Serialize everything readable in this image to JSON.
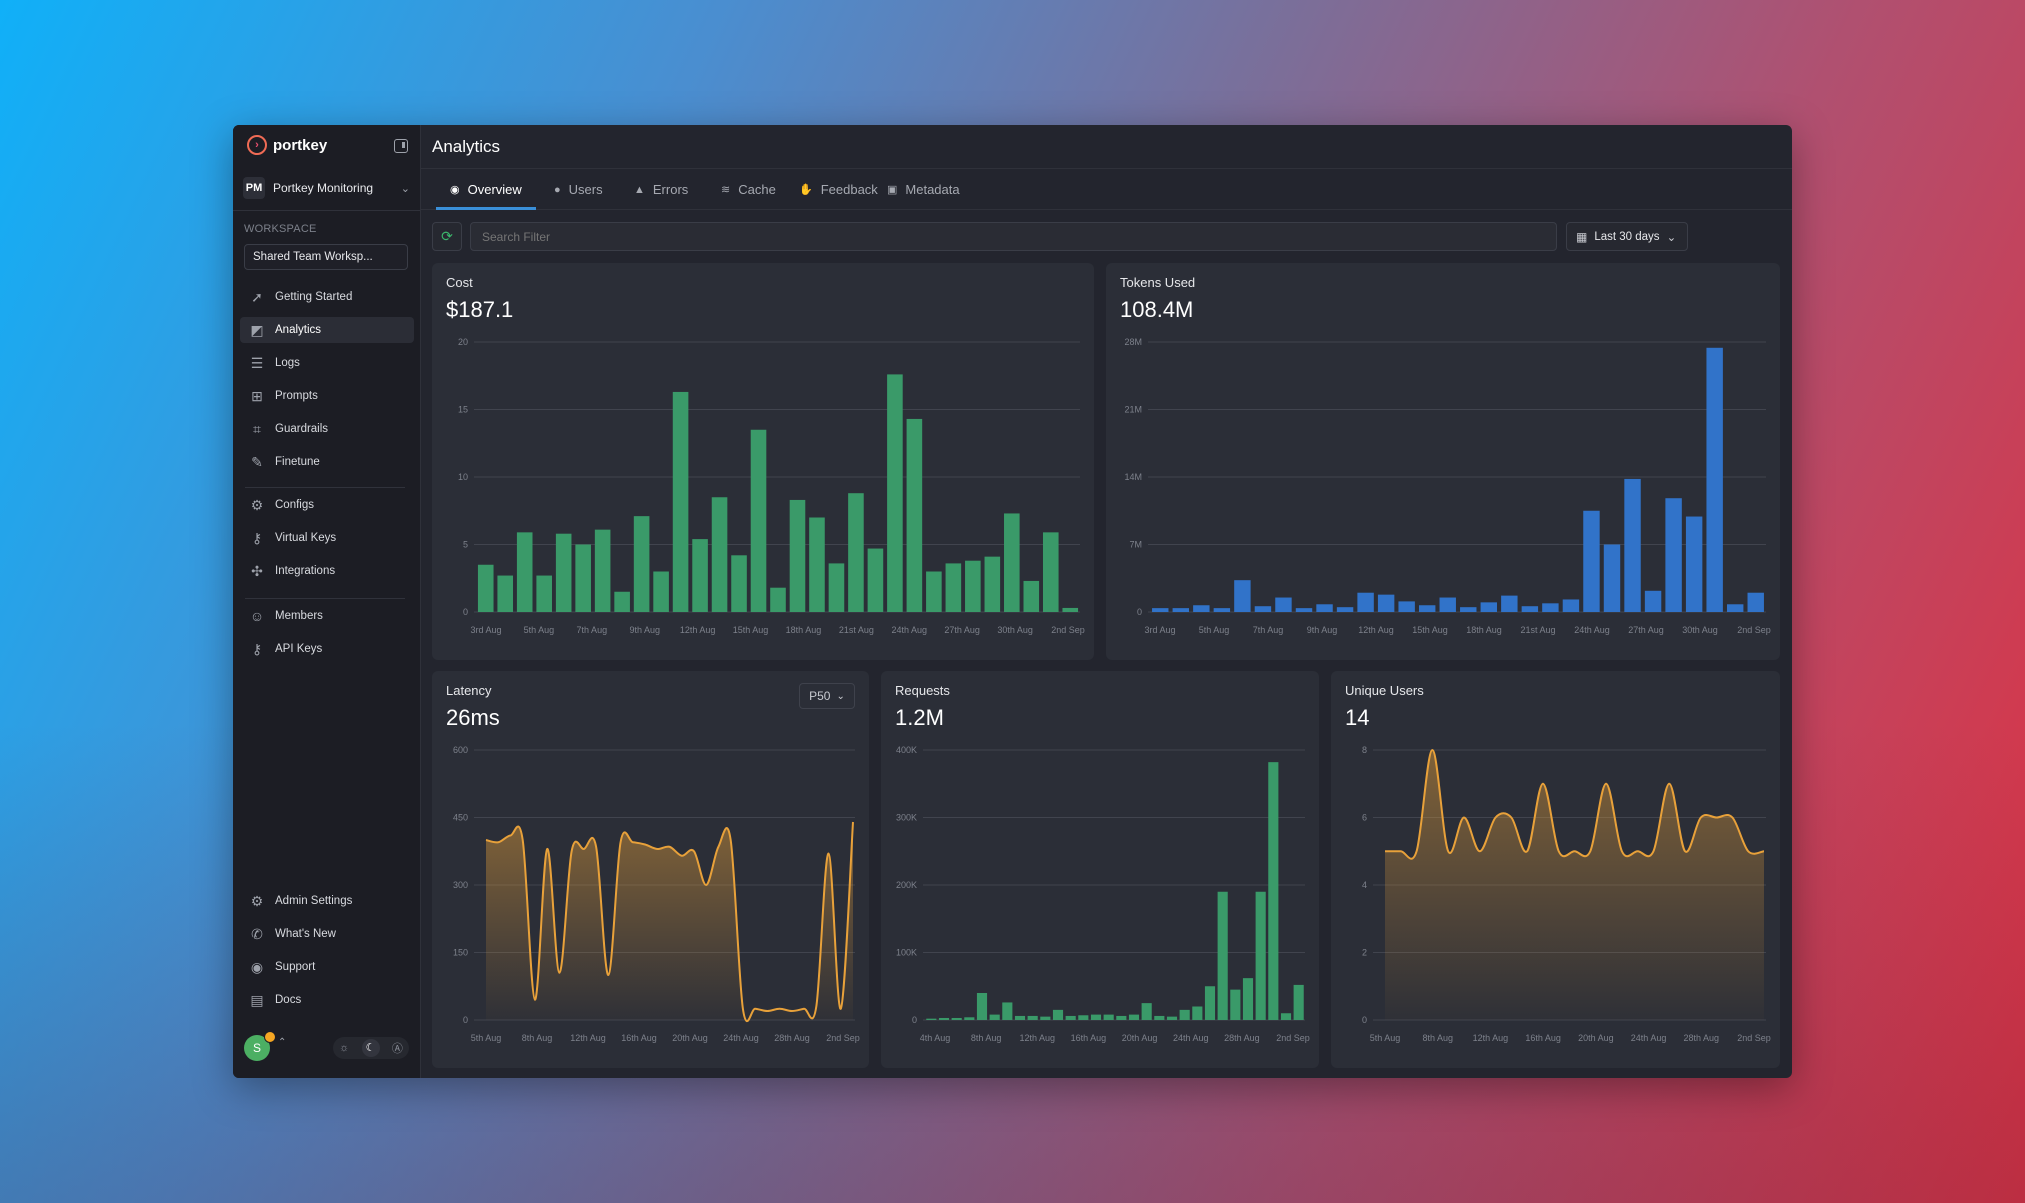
{
  "app": {
    "logo_text": "portkey",
    "org_badge": "PM",
    "org_name": "Portkey Monitoring",
    "workspace_label": "WORKSPACE",
    "workspace_value": "Shared Team Worksp...",
    "page_title": "Analytics",
    "avatar_initial": "S"
  },
  "sidebar": {
    "group1": [
      {
        "label": "Getting Started",
        "icon": "rocket-icon"
      },
      {
        "label": "Analytics",
        "icon": "chart-icon",
        "active": true
      },
      {
        "label": "Logs",
        "icon": "database-icon"
      },
      {
        "label": "Prompts",
        "icon": "grid-plus-icon"
      },
      {
        "label": "Guardrails",
        "icon": "guardrails-icon"
      },
      {
        "label": "Finetune",
        "icon": "wrench-icon"
      }
    ],
    "group2": [
      {
        "label": "Configs",
        "icon": "sliders-icon"
      },
      {
        "label": "Virtual Keys",
        "icon": "key-icon"
      },
      {
        "label": "Integrations",
        "icon": "puzzle-icon"
      }
    ],
    "group3": [
      {
        "label": "Members",
        "icon": "users-icon"
      },
      {
        "label": "API Keys",
        "icon": "key-icon"
      }
    ],
    "bottom": [
      {
        "label": "Admin Settings",
        "icon": "gear-icon"
      },
      {
        "label": "What's New",
        "icon": "megaphone-icon"
      },
      {
        "label": "Support",
        "icon": "discord-icon"
      },
      {
        "label": "Docs",
        "icon": "book-icon"
      }
    ]
  },
  "tabs": [
    {
      "label": "Overview",
      "icon": "eye-icon",
      "active": true
    },
    {
      "label": "Users",
      "icon": "user-icon"
    },
    {
      "label": "Errors",
      "icon": "warning-icon"
    },
    {
      "label": "Cache",
      "icon": "layers-icon"
    },
    {
      "label": "Feedback",
      "icon": "thumbs-up-icon"
    },
    {
      "label": "Metadata",
      "icon": "image-icon"
    }
  ],
  "toolbar": {
    "search_placeholder": "Search Filter",
    "date_range": "Last 30 days"
  },
  "colors": {
    "green": "#3a9a69",
    "blue": "#3173c9",
    "orange": "#e8a13a",
    "card_bg": "#2b2e37"
  },
  "chart_data": [
    {
      "type": "bar",
      "title": "Cost",
      "value_label": "$187.1",
      "ylim": [
        0,
        20
      ],
      "yticks": [
        "0",
        "5",
        "10",
        "15",
        "20"
      ],
      "xticks": [
        "3rd Aug",
        "5th Aug",
        "7th Aug",
        "9th Aug",
        "12th Aug",
        "15th Aug",
        "18th Aug",
        "21st Aug",
        "24th Aug",
        "27th Aug",
        "30th Aug",
        "2nd Sep"
      ],
      "values": [
        3.5,
        2.7,
        5.9,
        2.7,
        5.8,
        5.0,
        6.1,
        1.5,
        7.1,
        3.0,
        16.3,
        5.4,
        8.5,
        4.2,
        13.5,
        1.8,
        8.3,
        7.0,
        3.6,
        8.8,
        4.7,
        17.6,
        14.3,
        3.0,
        3.6,
        3.8,
        4.1,
        7.3,
        2.3,
        5.9,
        0.3
      ],
      "color": "#3a9a69"
    },
    {
      "type": "bar",
      "title": "Tokens Used",
      "value_label": "108.4M",
      "ylim": [
        0,
        28
      ],
      "yticks": [
        "0",
        "7M",
        "14M",
        "21M",
        "28M"
      ],
      "xticks": [
        "3rd Aug",
        "5th Aug",
        "7th Aug",
        "9th Aug",
        "12th Aug",
        "15th Aug",
        "18th Aug",
        "21st Aug",
        "24th Aug",
        "27th Aug",
        "30th Aug",
        "2nd Sep"
      ],
      "values": [
        0.4,
        0.4,
        0.7,
        0.4,
        3.3,
        0.6,
        1.5,
        0.4,
        0.8,
        0.5,
        2.0,
        1.8,
        1.1,
        0.7,
        1.5,
        0.5,
        1.0,
        1.7,
        0.6,
        0.9,
        1.3,
        10.5,
        7.0,
        13.8,
        2.2,
        11.8,
        9.9,
        27.4,
        0.8,
        2.0
      ],
      "color": "#3173c9"
    },
    {
      "type": "area",
      "title": "Latency",
      "value_label": "26ms",
      "selector": "P50",
      "ylim": [
        0,
        600
      ],
      "yticks": [
        "0",
        "150",
        "300",
        "450",
        "600"
      ],
      "xticks": [
        "5th Aug",
        "8th Aug",
        "12th Aug",
        "16th Aug",
        "20th Aug",
        "24th Aug",
        "28th Aug",
        "2nd Sep"
      ],
      "values": [
        400,
        395,
        410,
        400,
        45,
        380,
        105,
        375,
        380,
        385,
        100,
        395,
        395,
        390,
        380,
        385,
        365,
        375,
        300,
        385,
        400,
        25,
        25,
        20,
        25,
        20,
        25,
        30,
        370,
        25,
        440
      ],
      "color": "#e8a13a"
    },
    {
      "type": "bar",
      "title": "Requests",
      "value_label": "1.2M",
      "ylim": [
        0,
        400
      ],
      "yticks": [
        "0",
        "100K",
        "200K",
        "300K",
        "400K"
      ],
      "xticks": [
        "4th Aug",
        "8th Aug",
        "12th Aug",
        "16th Aug",
        "20th Aug",
        "24th Aug",
        "28th Aug",
        "2nd Sep"
      ],
      "values": [
        2,
        3,
        3,
        4,
        40,
        8,
        26,
        6,
        6,
        5,
        15,
        6,
        7,
        8,
        8,
        6,
        8,
        25,
        6,
        5,
        15,
        20,
        50,
        190,
        45,
        62,
        190,
        382,
        10,
        52
      ],
      "color": "#3a9a69"
    },
    {
      "type": "area",
      "title": "Unique Users",
      "value_label": "14",
      "ylim": [
        0,
        8
      ],
      "yticks": [
        "0",
        "2",
        "4",
        "6",
        "8"
      ],
      "xticks": [
        "5th Aug",
        "8th Aug",
        "12th Aug",
        "16th Aug",
        "20th Aug",
        "24th Aug",
        "28th Aug",
        "2nd Sep"
      ],
      "values": [
        5,
        5,
        5,
        8,
        5,
        6,
        5,
        6,
        6,
        5,
        7,
        5,
        5,
        5,
        7,
        5,
        5,
        5,
        7,
        5,
        6,
        6,
        6,
        5,
        5
      ],
      "color": "#e8a13a"
    }
  ]
}
